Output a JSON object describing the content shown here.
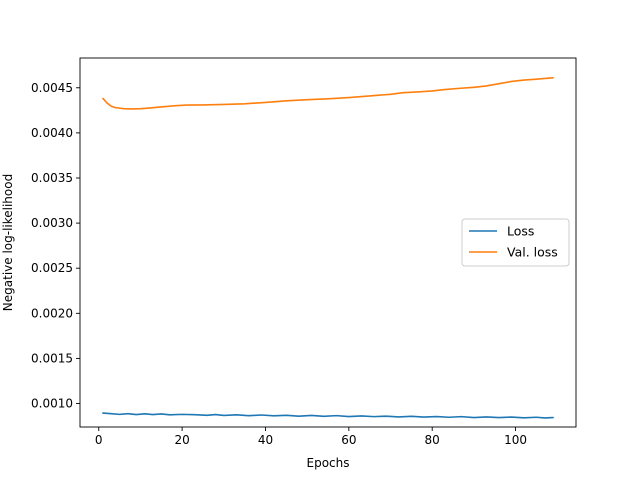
{
  "chart_data": {
    "type": "line",
    "title": "",
    "xlabel": "Epochs",
    "ylabel": "Negative log-likelihood",
    "xlim": [
      -4.5,
      114.5
    ],
    "ylim": [
      0.00074,
      0.00483
    ],
    "xticks": [
      0,
      20,
      40,
      60,
      80,
      100
    ],
    "yticks": [
      0.001,
      0.0015,
      0.002,
      0.0025,
      0.003,
      0.0035,
      0.004,
      0.0045
    ],
    "ytick_labels": [
      "0.0010",
      "0.0015",
      "0.0020",
      "0.0025",
      "0.0030",
      "0.0035",
      "0.0040",
      "0.0045"
    ],
    "grid": false,
    "legend_position": "center-right",
    "series": [
      {
        "name": "Loss",
        "color": "#1f77b4",
        "points": [
          [
            1,
            0.000895
          ],
          [
            3,
            0.000888
          ],
          [
            5,
            0.00088
          ],
          [
            7,
            0.000888
          ],
          [
            9,
            0.000878
          ],
          [
            11,
            0.000886
          ],
          [
            13,
            0.000878
          ],
          [
            15,
            0.000885
          ],
          [
            17,
            0.000875
          ],
          [
            20,
            0.00088
          ],
          [
            23,
            0.000877
          ],
          [
            26,
            0.00087
          ],
          [
            28,
            0.000878
          ],
          [
            30,
            0.000868
          ],
          [
            33,
            0.000875
          ],
          [
            36,
            0.000865
          ],
          [
            39,
            0.000873
          ],
          [
            42,
            0.000864
          ],
          [
            45,
            0.00087
          ],
          [
            48,
            0.00086
          ],
          [
            51,
            0.000868
          ],
          [
            54,
            0.000858
          ],
          [
            57,
            0.000866
          ],
          [
            60,
            0.000856
          ],
          [
            63,
            0.000863
          ],
          [
            66,
            0.000855
          ],
          [
            69,
            0.00086
          ],
          [
            72,
            0.000852
          ],
          [
            75,
            0.000858
          ],
          [
            78,
            0.00085
          ],
          [
            81,
            0.000856
          ],
          [
            84,
            0.000848
          ],
          [
            87,
            0.000855
          ],
          [
            90,
            0.000845
          ],
          [
            93,
            0.000852
          ],
          [
            96,
            0.000845
          ],
          [
            99,
            0.00085
          ],
          [
            102,
            0.000842
          ],
          [
            105,
            0.000848
          ],
          [
            107,
            0.00084
          ],
          [
            109,
            0.000845
          ]
        ]
      },
      {
        "name": "Val. loss",
        "color": "#ff7f0e",
        "points": [
          [
            1,
            0.004382
          ],
          [
            2,
            0.00433
          ],
          [
            3,
            0.004295
          ],
          [
            4,
            0.00428
          ],
          [
            6,
            0.004268
          ],
          [
            8,
            0.004265
          ],
          [
            10,
            0.004268
          ],
          [
            12,
            0.004275
          ],
          [
            15,
            0.004288
          ],
          [
            18,
            0.0043
          ],
          [
            21,
            0.004308
          ],
          [
            25,
            0.00431
          ],
          [
            30,
            0.004315
          ],
          [
            35,
            0.004322
          ],
          [
            40,
            0.004338
          ],
          [
            45,
            0.004355
          ],
          [
            50,
            0.004368
          ],
          [
            55,
            0.004378
          ],
          [
            60,
            0.004392
          ],
          [
            65,
            0.00441
          ],
          [
            70,
            0.004428
          ],
          [
            73,
            0.004445
          ],
          [
            77,
            0.004455
          ],
          [
            80,
            0.004465
          ],
          [
            83,
            0.00448
          ],
          [
            86,
            0.004492
          ],
          [
            90,
            0.004505
          ],
          [
            93,
            0.00452
          ],
          [
            96,
            0.004545
          ],
          [
            99,
            0.00457
          ],
          [
            102,
            0.004585
          ],
          [
            105,
            0.004595
          ],
          [
            107,
            0.004603
          ],
          [
            109,
            0.00461
          ]
        ]
      }
    ]
  }
}
